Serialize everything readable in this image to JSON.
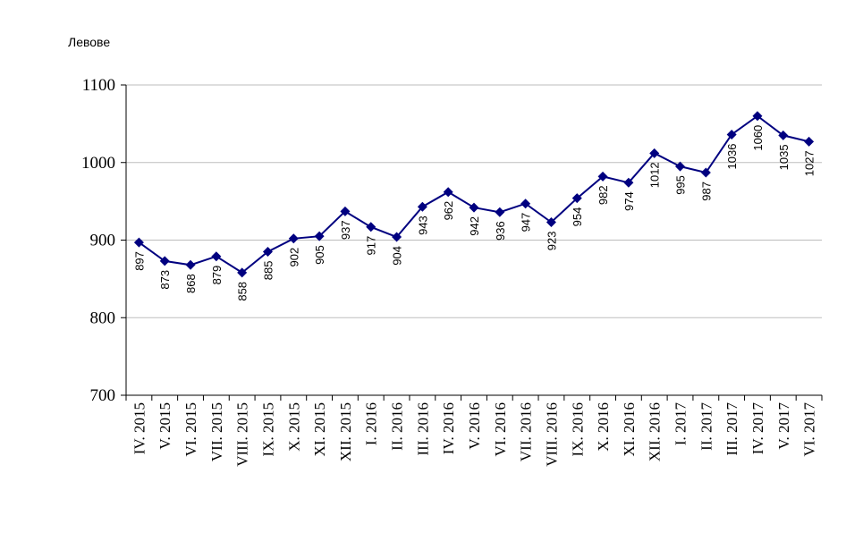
{
  "chart_data": {
    "type": "line",
    "ylabel": "Левове",
    "ylim": [
      700,
      1100
    ],
    "yticks": [
      700,
      800,
      900,
      1000,
      1100
    ],
    "grid": true,
    "legend": "none",
    "line_color": "#000080",
    "categories": [
      "IV. 2015",
      "V. 2015",
      "VI. 2015",
      "VII. 2015",
      "VIII. 2015",
      "IX. 2015",
      "X. 2015",
      "XI. 2015",
      "XII. 2015",
      "I. 2016",
      "II. 2016",
      "III. 2016",
      "IV. 2016",
      "V. 2016",
      "VI. 2016",
      "VII. 2016",
      "VIII. 2016",
      "IX. 2016",
      "X. 2016",
      "XI. 2016",
      "XII. 2016",
      "I. 2017",
      "II. 2017",
      "III. 2017",
      "IV. 2017",
      "V. 2017",
      "VI. 2017"
    ],
    "values": [
      897,
      873,
      868,
      879,
      858,
      885,
      902,
      905,
      937,
      917,
      904,
      943,
      962,
      942,
      936,
      947,
      923,
      954,
      982,
      974,
      1012,
      995,
      987,
      1036,
      1060,
      1035,
      1027
    ]
  }
}
